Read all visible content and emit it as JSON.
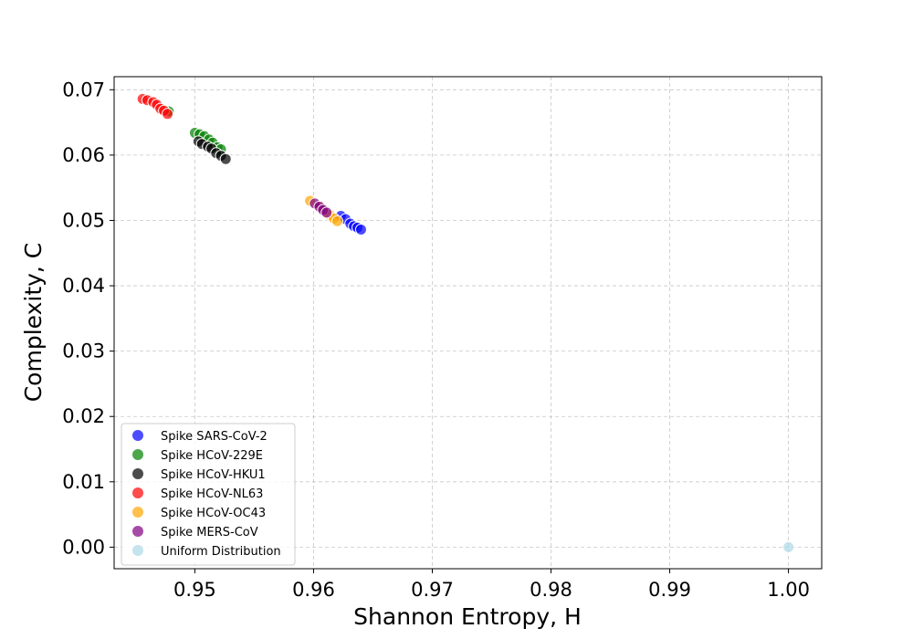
{
  "chart_data": {
    "type": "scatter",
    "title": "",
    "xlabel": "Shannon Entropy, H",
    "ylabel": "Complexity, C",
    "xlim": [
      0.9432,
      1.0028
    ],
    "ylim": [
      -0.0033,
      0.072
    ],
    "xticks": [
      0.95,
      0.96,
      0.97,
      0.98,
      0.99,
      1.0
    ],
    "xtick_labels": [
      "0.95",
      "0.96",
      "0.97",
      "0.98",
      "0.99",
      "1.00"
    ],
    "yticks": [
      0.0,
      0.01,
      0.02,
      0.03,
      0.04,
      0.05,
      0.06,
      0.07
    ],
    "ytick_labels": [
      "0.00",
      "0.01",
      "0.02",
      "0.03",
      "0.04",
      "0.05",
      "0.06",
      "0.07"
    ],
    "grid": true,
    "legend_position": "lower-left",
    "series": [
      {
        "name": "Spike SARS-CoV-2",
        "color": "#0000ff",
        "points": [
          [
            0.9623,
            0.0507
          ],
          [
            0.9627,
            0.0502
          ],
          [
            0.9631,
            0.0495
          ],
          [
            0.9634,
            0.0491
          ],
          [
            0.9637,
            0.0489
          ],
          [
            0.964,
            0.0486
          ]
        ]
      },
      {
        "name": "Spike HCoV-229E",
        "color": "#008000",
        "points": [
          [
            0.9478,
            0.0667
          ],
          [
            0.95,
            0.0634
          ],
          [
            0.9504,
            0.0632
          ],
          [
            0.9508,
            0.0629
          ],
          [
            0.9512,
            0.0624
          ],
          [
            0.9515,
            0.0619
          ],
          [
            0.9519,
            0.0612
          ],
          [
            0.9522,
            0.0609
          ]
        ]
      },
      {
        "name": "Spike HCoV-HKU1",
        "color": "#000000",
        "points": [
          [
            0.9503,
            0.0621
          ],
          [
            0.9506,
            0.0617
          ],
          [
            0.9511,
            0.0613
          ],
          [
            0.9514,
            0.061
          ],
          [
            0.9518,
            0.0603
          ],
          [
            0.9522,
            0.0599
          ],
          [
            0.9526,
            0.0594
          ]
        ]
      },
      {
        "name": "Spike HCoV-NL63",
        "color": "#ff0000",
        "points": [
          [
            0.9456,
            0.0686
          ],
          [
            0.946,
            0.0684
          ],
          [
            0.9465,
            0.0681
          ],
          [
            0.9468,
            0.0677
          ],
          [
            0.9471,
            0.0671
          ],
          [
            0.9474,
            0.0668
          ],
          [
            0.9477,
            0.0663
          ]
        ]
      },
      {
        "name": "Spike HCoV-OC43",
        "color": "#ffa500",
        "points": [
          [
            0.9597,
            0.053
          ],
          [
            0.9605,
            0.0522
          ],
          [
            0.961,
            0.0515
          ],
          [
            0.9614,
            0.0508
          ],
          [
            0.9617,
            0.0503
          ],
          [
            0.962,
            0.0499
          ]
        ]
      },
      {
        "name": "Spike MERS-CoV",
        "color": "#800080",
        "points": [
          [
            0.9601,
            0.0526
          ],
          [
            0.9605,
            0.0521
          ],
          [
            0.9608,
            0.0516
          ],
          [
            0.9611,
            0.0512
          ]
        ]
      },
      {
        "name": "Uniform Distribution",
        "color": "#add8e6",
        "points": [
          [
            1.0,
            0.0
          ]
        ]
      }
    ]
  }
}
